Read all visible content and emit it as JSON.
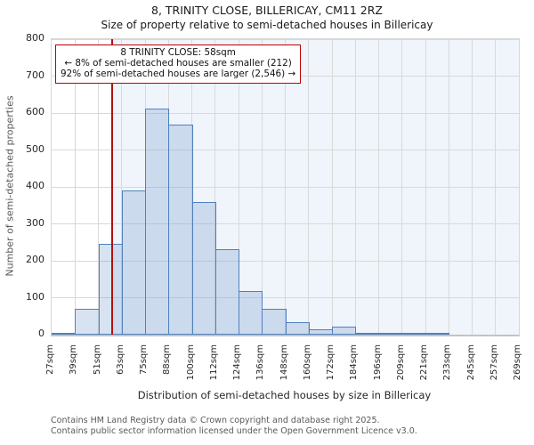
{
  "header": {
    "title": "8, TRINITY CLOSE, BILLERICAY, CM11 2RZ",
    "subtitle": "Size of property relative to semi-detached houses in Billericay"
  },
  "annotation": {
    "line1": "8 TRINITY CLOSE: 58sqm",
    "line2": "← 8% of semi-detached houses are smaller (212)",
    "line3": "92% of semi-detached houses are larger (2,546) →"
  },
  "chart_data": {
    "type": "bar",
    "title": "8, TRINITY CLOSE, BILLERICAY, CM11 2RZ",
    "xlabel": "Distribution of semi-detached houses by size in Billericay",
    "ylabel": "Number of semi-detached properties",
    "bin_edges": [
      27,
      39,
      51,
      63,
      75,
      88,
      100,
      112,
      124,
      136,
      148,
      160,
      172,
      184,
      196,
      209,
      221,
      233,
      245,
      257,
      269
    ],
    "categories": [
      "27sqm",
      "39sqm",
      "51sqm",
      "63sqm",
      "75sqm",
      "88sqm",
      "100sqm",
      "112sqm",
      "124sqm",
      "136sqm",
      "148sqm",
      "160sqm",
      "172sqm",
      "184sqm",
      "196sqm",
      "209sqm",
      "221sqm",
      "233sqm",
      "245sqm",
      "257sqm",
      "269sqm"
    ],
    "values": [
      5,
      70,
      245,
      390,
      613,
      568,
      358,
      232,
      118,
      70,
      33,
      14,
      22,
      5,
      4,
      4,
      4,
      0,
      0,
      0
    ],
    "ylim": [
      0,
      800
    ],
    "yticks": [
      0,
      100,
      200,
      300,
      400,
      500,
      600,
      700,
      800
    ],
    "marker_value": 58,
    "marker_label": "8 TRINITY CLOSE: 58sqm",
    "grid": true,
    "legend": "none",
    "colors": {
      "bar_fill": "rgba(79,129,189,0.22)",
      "bar_edge": "#4e81bd",
      "marker_line": "#b01111",
      "annotation_border": "#c00000",
      "shade_right_of_marker": "#f0f4fb",
      "gridline": "#d9d9d9"
    }
  },
  "footer": {
    "line1": "Contains HM Land Registry data © Crown copyright and database right 2025.",
    "line2": "Contains public sector information licensed under the Open Government Licence v3.0."
  }
}
